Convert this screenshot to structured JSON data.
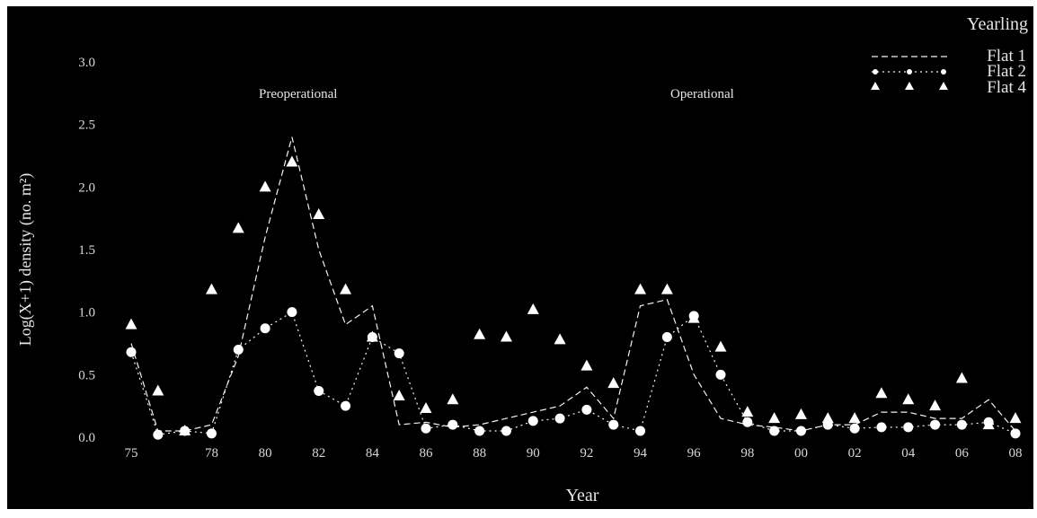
{
  "chart_data": {
    "type": "scatter",
    "corner_label": "Yearling",
    "xlabel": "Year",
    "ylabel": "Log(X+1) density (no. m²)",
    "ylim": [
      0,
      3.0
    ],
    "yticks": [
      "0.0",
      "0.5",
      "1.0",
      "1.5",
      "2.0",
      "2.5",
      "3.0"
    ],
    "xlim": [
      1975,
      2008
    ],
    "xticks": [
      {
        "x": 1975,
        "label": "75"
      },
      {
        "x": 1978,
        "label": "78"
      },
      {
        "x": 1980,
        "label": "80"
      },
      {
        "x": 1982,
        "label": "82"
      },
      {
        "x": 1984,
        "label": "84"
      },
      {
        "x": 1986,
        "label": "86"
      },
      {
        "x": 1988,
        "label": "88"
      },
      {
        "x": 1990,
        "label": "90"
      },
      {
        "x": 1992,
        "label": "92"
      },
      {
        "x": 1994,
        "label": "94"
      },
      {
        "x": 1996,
        "label": "96"
      },
      {
        "x": 1998,
        "label": "98"
      },
      {
        "x": 2000,
        "label": "00"
      },
      {
        "x": 2002,
        "label": "02"
      },
      {
        "x": 2004,
        "label": "04"
      },
      {
        "x": 2006,
        "label": "06"
      },
      {
        "x": 2008,
        "label": "08"
      }
    ],
    "annotations": {
      "preoperational": "Preoperational",
      "operational": "Operational"
    },
    "legend_position": "top-right",
    "series": [
      {
        "name": "Flat 1",
        "marker": "none",
        "x": [
          1975,
          1976,
          1977,
          1978,
          1979,
          1980,
          1981,
          1982,
          1983,
          1984,
          1985,
          1986,
          1987,
          1988,
          1989,
          1990,
          1991,
          1992,
          1993,
          1994,
          1995,
          1996,
          1997,
          1998,
          1999,
          2000,
          2001,
          2002,
          2003,
          2004,
          2005,
          2006,
          2007,
          2008
        ],
        "values": [
          0.75,
          0.05,
          0.05,
          0.1,
          0.65,
          1.6,
          2.4,
          1.5,
          0.9,
          1.05,
          0.1,
          0.12,
          0.08,
          0.1,
          0.15,
          0.2,
          0.25,
          0.4,
          0.15,
          1.05,
          1.1,
          0.5,
          0.15,
          0.1,
          0.08,
          0.05,
          0.1,
          0.1,
          0.2,
          0.2,
          0.15,
          0.15,
          0.3,
          0.05
        ]
      },
      {
        "name": "Flat 2",
        "marker": "circle",
        "x": [
          1975,
          1976,
          1977,
          1978,
          1979,
          1980,
          1981,
          1982,
          1983,
          1984,
          1985,
          1986,
          1987,
          1988,
          1989,
          1990,
          1991,
          1992,
          1993,
          1994,
          1995,
          1996,
          1997,
          1998,
          1999,
          2000,
          2001,
          2002,
          2003,
          2004,
          2005,
          2006,
          2007,
          2008
        ],
        "values": [
          0.68,
          0.02,
          0.05,
          0.03,
          0.7,
          0.87,
          1.0,
          0.37,
          0.25,
          0.8,
          0.67,
          0.07,
          0.1,
          0.05,
          0.05,
          0.13,
          0.15,
          0.22,
          0.1,
          0.05,
          0.8,
          0.97,
          0.5,
          0.12,
          0.05,
          0.05,
          0.1,
          0.07,
          0.08,
          0.08,
          0.1,
          0.1,
          0.12,
          0.03
        ]
      },
      {
        "name": "Flat 4",
        "marker": "triangle",
        "x": [
          1975,
          1976,
          1977,
          1978,
          1979,
          1980,
          1981,
          1982,
          1983,
          1984,
          1985,
          1986,
          1987,
          1988,
          1989,
          1990,
          1991,
          1992,
          1993,
          1994,
          1995,
          1996,
          1997,
          1998,
          1999,
          2000,
          2001,
          2002,
          2003,
          2004,
          2005,
          2006,
          2007,
          2008
        ],
        "values": [
          0.9,
          0.37,
          0.05,
          1.18,
          1.67,
          2.0,
          2.2,
          1.78,
          1.18,
          0.8,
          0.33,
          0.23,
          0.3,
          0.82,
          0.8,
          1.02,
          0.78,
          0.57,
          0.43,
          1.18,
          1.18,
          0.95,
          0.72,
          0.2,
          0.15,
          0.18,
          0.15,
          0.15,
          0.35,
          0.3,
          0.25,
          0.47,
          0.1,
          0.15
        ]
      }
    ]
  }
}
